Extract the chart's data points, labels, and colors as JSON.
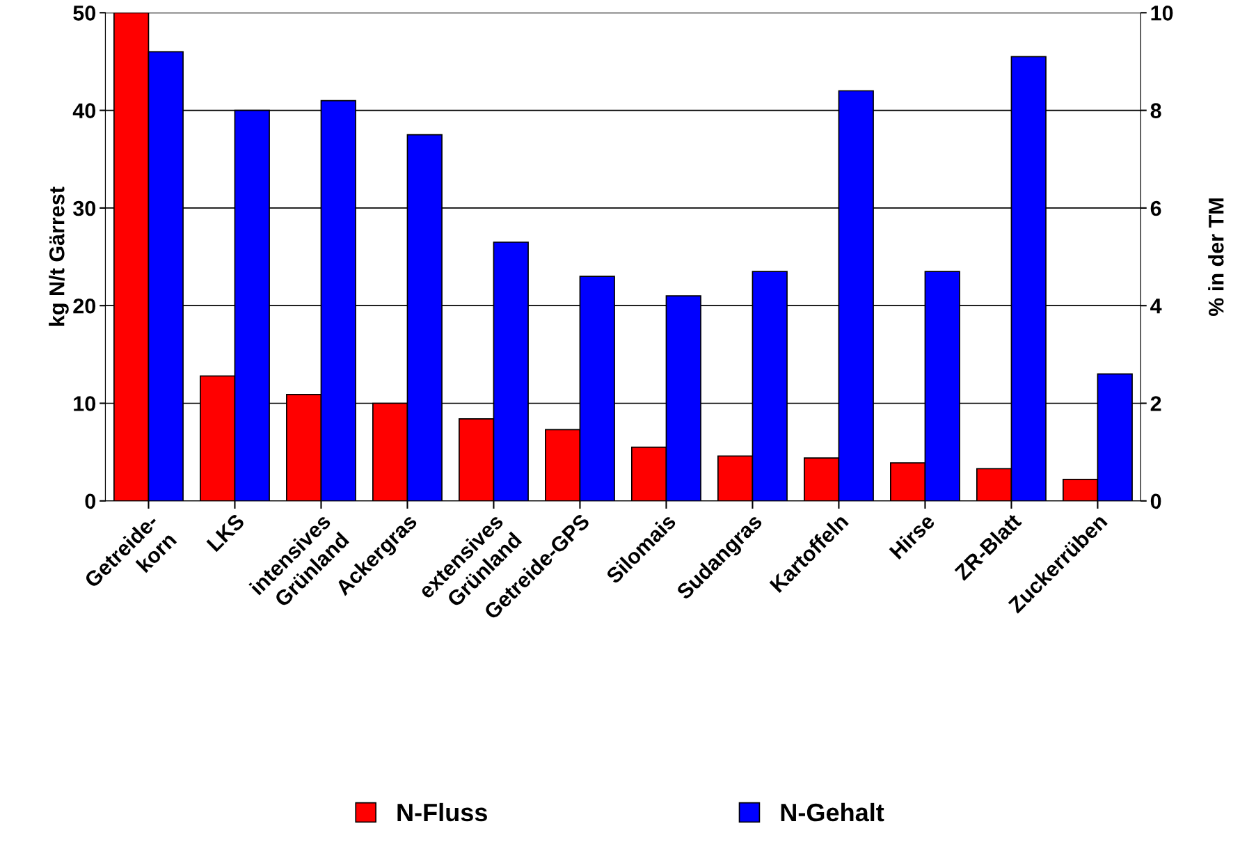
{
  "chart_data": {
    "type": "bar",
    "ylabel": "kg N/t Gärrest",
    "y2label": "% in der TM",
    "categories": [
      "Getreide-\nkorn",
      "LKS",
      "intensives\nGrünland",
      "Ackergras",
      "extensives\nGrünland",
      "Getreide-GPS",
      "Silomais",
      "Sudangras",
      "Kartoffeln",
      "Hirse",
      "ZR-Blatt",
      "Zuckerrüben"
    ],
    "series": [
      {
        "name": "N-Fluss",
        "color": "#ff0000",
        "values": [
          50,
          12.8,
          10.9,
          10,
          8.4,
          7.3,
          5.5,
          4.6,
          4.4,
          3.9,
          3.3,
          2.2
        ]
      },
      {
        "name": "N-Gehalt",
        "color": "#0000ff",
        "axis": "y2",
        "values": [
          9.2,
          8.0,
          8.2,
          7.5,
          5.3,
          4.6,
          4.2,
          4.7,
          8.4,
          4.7,
          9.1,
          2.6
        ]
      }
    ],
    "ylim": [
      0,
      50
    ],
    "yticks": [
      0,
      10,
      20,
      30,
      40,
      50
    ],
    "y2lim": [
      0,
      10
    ],
    "y2ticks": [
      0,
      2,
      4,
      6,
      8,
      10
    ],
    "grid": "y",
    "legend": "bottom"
  }
}
